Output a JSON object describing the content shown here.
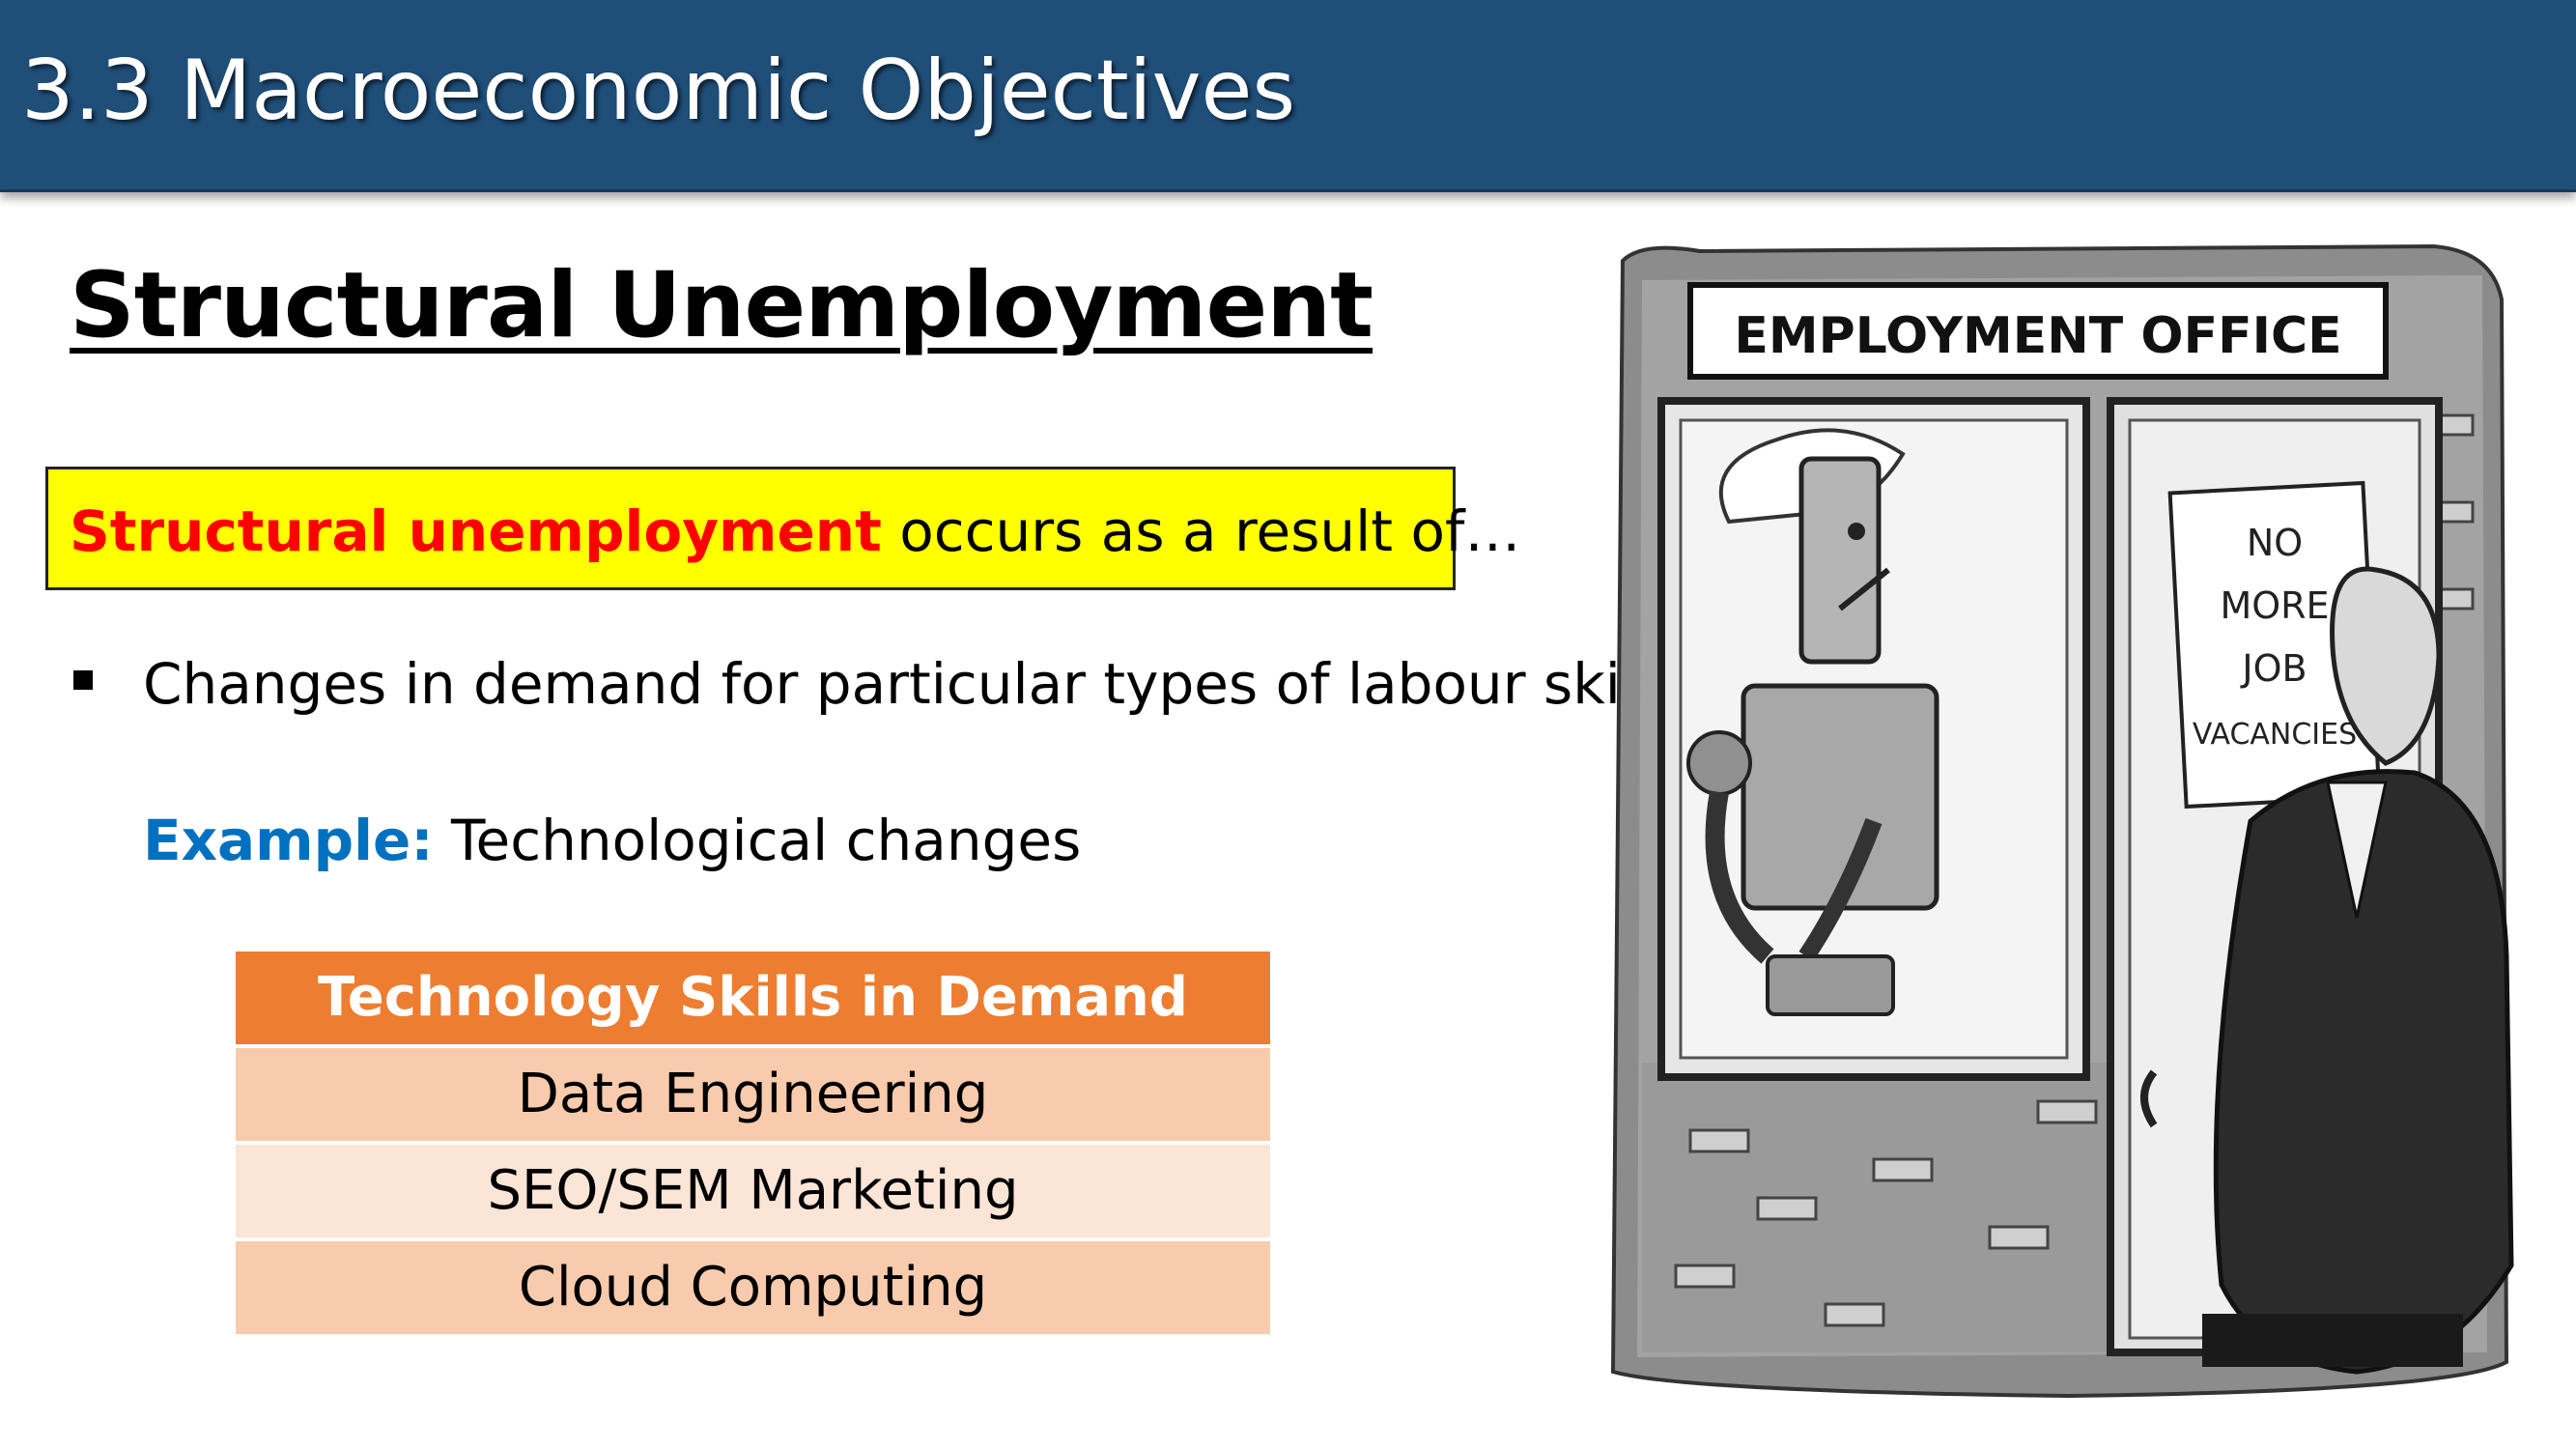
{
  "header": {
    "title": "3.3 Macroeconomic Objectives"
  },
  "section": {
    "title": "Structural Unemployment"
  },
  "definition": {
    "term": "Structural unemployment",
    "rest": " occurs as a result of…"
  },
  "bullets": [
    {
      "text": "Changes in demand for particular types of labour skills"
    }
  ],
  "example": {
    "label": "Example:",
    "text": " Technological changes"
  },
  "skills_table": {
    "header": "Technology Skills in Demand",
    "rows": [
      "Data Engineering",
      "SEO/SEM Marketing",
      "Cloud Computing"
    ]
  },
  "cartoon": {
    "sign": "EMPLOYMENT OFFICE",
    "notice_lines": [
      "NO",
      "MORE",
      "JOB",
      "VACANCIES"
    ]
  },
  "colors": {
    "header_bg": "#1f4e79",
    "definition_bg": "#ffff00",
    "definition_term": "#ff0000",
    "example_label": "#0070c0",
    "table_header": "#ed7d31",
    "table_row_dark": "#f8cbad",
    "table_row_light": "#fbe5d6"
  }
}
